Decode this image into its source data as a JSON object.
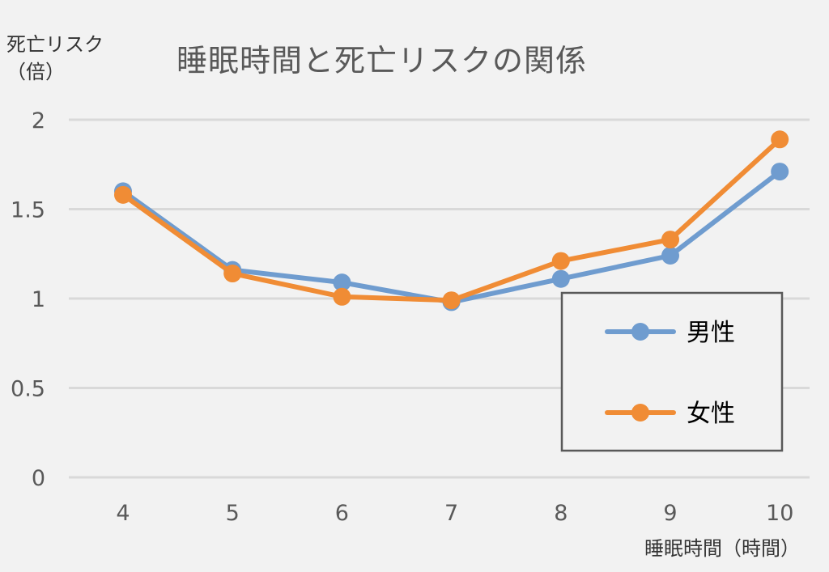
{
  "chart_data": {
    "type": "line",
    "title": "睡眠時間と死亡リスクの関係",
    "ylabel_line1": "死亡リスク",
    "ylabel_line2": "（倍）",
    "xlabel": "睡眠時間（時間）",
    "categories": [
      "4",
      "5",
      "6",
      "7",
      "8",
      "9",
      "10"
    ],
    "yticks": [
      "0",
      "0.5",
      "1",
      "1.5",
      "2"
    ],
    "ylim": [
      0,
      2
    ],
    "grid": true,
    "legend_position": "right",
    "series": [
      {
        "name": "男性",
        "color": "#6f9ccf",
        "values": [
          1.6,
          1.16,
          1.09,
          0.98,
          1.11,
          1.24,
          1.71
        ]
      },
      {
        "name": "女性",
        "color": "#f08c35",
        "values": [
          1.58,
          1.14,
          1.01,
          0.99,
          1.21,
          1.33,
          1.89
        ]
      }
    ]
  }
}
